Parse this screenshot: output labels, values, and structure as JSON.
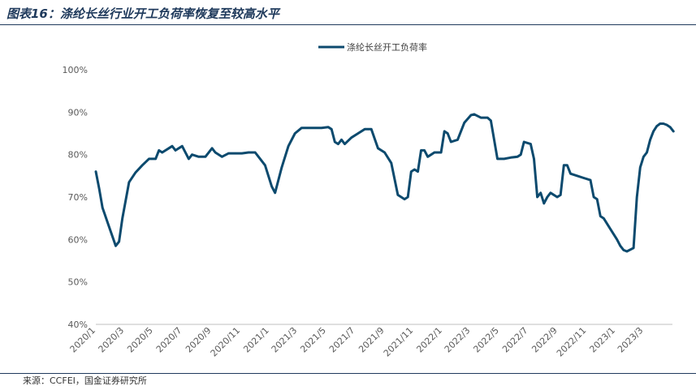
{
  "figure": {
    "title": "图表16：涤纶长丝行业开工负荷率恢复至较高水平",
    "source": "来源：CCFEI，国金证券研究所"
  },
  "chart_data": {
    "type": "line",
    "legend": {
      "position": "top-center"
    },
    "series": [
      {
        "name": "涤纶长丝开工负荷率",
        "color": "#0c4a6e",
        "points": [
          [
            "2020-01-01",
            76.0
          ],
          [
            "2020-01-08",
            72.0
          ],
          [
            "2020-01-15",
            67.5
          ],
          [
            "2020-01-29",
            63.0
          ],
          [
            "2020-02-12",
            58.5
          ],
          [
            "2020-02-19",
            59.5
          ],
          [
            "2020-02-26",
            65.0
          ],
          [
            "2020-03-11",
            73.5
          ],
          [
            "2020-03-25",
            75.8
          ],
          [
            "2020-04-08",
            77.5
          ],
          [
            "2020-04-22",
            79.0
          ],
          [
            "2020-05-06",
            79.0
          ],
          [
            "2020-05-13",
            81.0
          ],
          [
            "2020-05-20",
            80.5
          ],
          [
            "2020-06-03",
            81.5
          ],
          [
            "2020-06-10",
            82.0
          ],
          [
            "2020-06-17",
            81.0
          ],
          [
            "2020-07-01",
            82.0
          ],
          [
            "2020-07-15",
            79.0
          ],
          [
            "2020-07-22",
            80.0
          ],
          [
            "2020-08-05",
            79.5
          ],
          [
            "2020-08-19",
            79.5
          ],
          [
            "2020-09-02",
            81.5
          ],
          [
            "2020-09-09",
            80.5
          ],
          [
            "2020-09-23",
            79.5
          ],
          [
            "2020-10-07",
            80.3
          ],
          [
            "2020-10-21",
            80.3
          ],
          [
            "2020-11-04",
            80.3
          ],
          [
            "2020-11-18",
            80.5
          ],
          [
            "2020-12-02",
            80.5
          ],
          [
            "2020-12-09",
            79.5
          ],
          [
            "2020-12-23",
            77.5
          ],
          [
            "2021-01-06",
            72.5
          ],
          [
            "2021-01-13",
            71.0
          ],
          [
            "2021-01-27",
            77.0
          ],
          [
            "2021-02-10",
            82.0
          ],
          [
            "2021-02-24",
            85.0
          ],
          [
            "2021-03-10",
            86.3
          ],
          [
            "2021-03-24",
            86.3
          ],
          [
            "2021-04-07",
            86.3
          ],
          [
            "2021-04-21",
            86.3
          ],
          [
            "2021-05-05",
            86.5
          ],
          [
            "2021-05-12",
            86.0
          ],
          [
            "2021-05-19",
            83.0
          ],
          [
            "2021-05-26",
            82.5
          ],
          [
            "2021-06-02",
            83.5
          ],
          [
            "2021-06-09",
            82.5
          ],
          [
            "2021-06-23",
            84.0
          ],
          [
            "2021-07-07",
            85.0
          ],
          [
            "2021-07-21",
            86.0
          ],
          [
            "2021-08-04",
            86.0
          ],
          [
            "2021-08-18",
            81.5
          ],
          [
            "2021-09-01",
            80.5
          ],
          [
            "2021-09-15",
            78.0
          ],
          [
            "2021-09-29",
            70.5
          ],
          [
            "2021-10-13",
            69.5
          ],
          [
            "2021-10-20",
            70.0
          ],
          [
            "2021-10-27",
            76.0
          ],
          [
            "2021-11-03",
            76.5
          ],
          [
            "2021-11-10",
            76.0
          ],
          [
            "2021-11-17",
            81.0
          ],
          [
            "2021-11-24",
            81.0
          ],
          [
            "2021-12-01",
            79.5
          ],
          [
            "2021-12-08",
            80.0
          ],
          [
            "2021-12-15",
            80.5
          ],
          [
            "2021-12-29",
            80.5
          ],
          [
            "2022-01-05",
            85.5
          ],
          [
            "2022-01-12",
            85.0
          ],
          [
            "2022-01-19",
            83.0
          ],
          [
            "2022-02-02",
            83.5
          ],
          [
            "2022-02-16",
            87.5
          ],
          [
            "2022-03-02",
            89.3
          ],
          [
            "2022-03-09",
            89.5
          ],
          [
            "2022-03-23",
            88.7
          ],
          [
            "2022-04-06",
            88.7
          ],
          [
            "2022-04-13",
            88.0
          ],
          [
            "2022-04-27",
            79.0
          ],
          [
            "2022-05-11",
            79.0
          ],
          [
            "2022-05-25",
            79.3
          ],
          [
            "2022-06-08",
            79.5
          ],
          [
            "2022-06-15",
            80.0
          ],
          [
            "2022-06-22",
            83.0
          ],
          [
            "2022-07-06",
            82.5
          ],
          [
            "2022-07-13",
            79.0
          ],
          [
            "2022-07-20",
            70.0
          ],
          [
            "2022-07-27",
            71.0
          ],
          [
            "2022-08-03",
            68.5
          ],
          [
            "2022-08-10",
            70.0
          ],
          [
            "2022-08-17",
            71.0
          ],
          [
            "2022-08-31",
            70.0
          ],
          [
            "2022-09-07",
            70.5
          ],
          [
            "2022-09-14",
            77.5
          ],
          [
            "2022-09-21",
            77.5
          ],
          [
            "2022-09-28",
            75.5
          ],
          [
            "2022-10-12",
            75.0
          ],
          [
            "2022-10-26",
            74.5
          ],
          [
            "2022-11-09",
            74.0
          ],
          [
            "2022-11-16",
            70.0
          ],
          [
            "2022-11-23",
            69.5
          ],
          [
            "2022-11-30",
            65.5
          ],
          [
            "2022-12-07",
            65.0
          ],
          [
            "2022-12-21",
            62.5
          ],
          [
            "2023-01-04",
            60.0
          ],
          [
            "2023-01-11",
            58.5
          ],
          [
            "2023-01-18",
            57.5
          ],
          [
            "2023-01-25",
            57.2
          ],
          [
            "2023-02-08",
            58.0
          ],
          [
            "2023-02-15",
            70.0
          ],
          [
            "2023-02-22",
            77.0
          ],
          [
            "2023-03-01",
            79.5
          ],
          [
            "2023-03-08",
            80.5
          ],
          [
            "2023-03-15",
            83.5
          ],
          [
            "2023-03-22",
            85.5
          ],
          [
            "2023-03-29",
            86.7
          ],
          [
            "2023-04-05",
            87.3
          ],
          [
            "2023-04-12",
            87.3
          ],
          [
            "2023-04-19",
            87.0
          ],
          [
            "2023-04-26",
            86.5
          ],
          [
            "2023-05-03",
            85.5
          ]
        ]
      }
    ],
    "y_axis": {
      "min": 40,
      "max": 100,
      "step": 10,
      "format": "percent",
      "tick_labels": [
        "40%",
        "50%",
        "60%",
        "70%",
        "80%",
        "90%",
        "100%"
      ]
    },
    "x_axis": {
      "min": "2020-01-01",
      "max": "2023-05-01",
      "ticks": [
        [
          "2020-01-01",
          "2020/1"
        ],
        [
          "2020-03-01",
          "2020/3"
        ],
        [
          "2020-05-01",
          "2020/5"
        ],
        [
          "2020-07-01",
          "2020/7"
        ],
        [
          "2020-09-01",
          "2020/9"
        ],
        [
          "2020-11-01",
          "2020/11"
        ],
        [
          "2021-01-01",
          "2021/1"
        ],
        [
          "2021-03-01",
          "2021/3"
        ],
        [
          "2021-05-01",
          "2021/5"
        ],
        [
          "2021-07-01",
          "2021/7"
        ],
        [
          "2021-09-01",
          "2021/9"
        ],
        [
          "2021-11-01",
          "2021/11"
        ],
        [
          "2022-01-01",
          "2022/1"
        ],
        [
          "2022-03-01",
          "2022/3"
        ],
        [
          "2022-05-01",
          "2022/5"
        ],
        [
          "2022-07-01",
          "2022/7"
        ],
        [
          "2022-09-01",
          "2022/9"
        ],
        [
          "2022-11-01",
          "2022/11"
        ],
        [
          "2023-01-01",
          "2023/1"
        ],
        [
          "2023-03-01",
          "2023/3"
        ]
      ]
    },
    "grid": false
  }
}
